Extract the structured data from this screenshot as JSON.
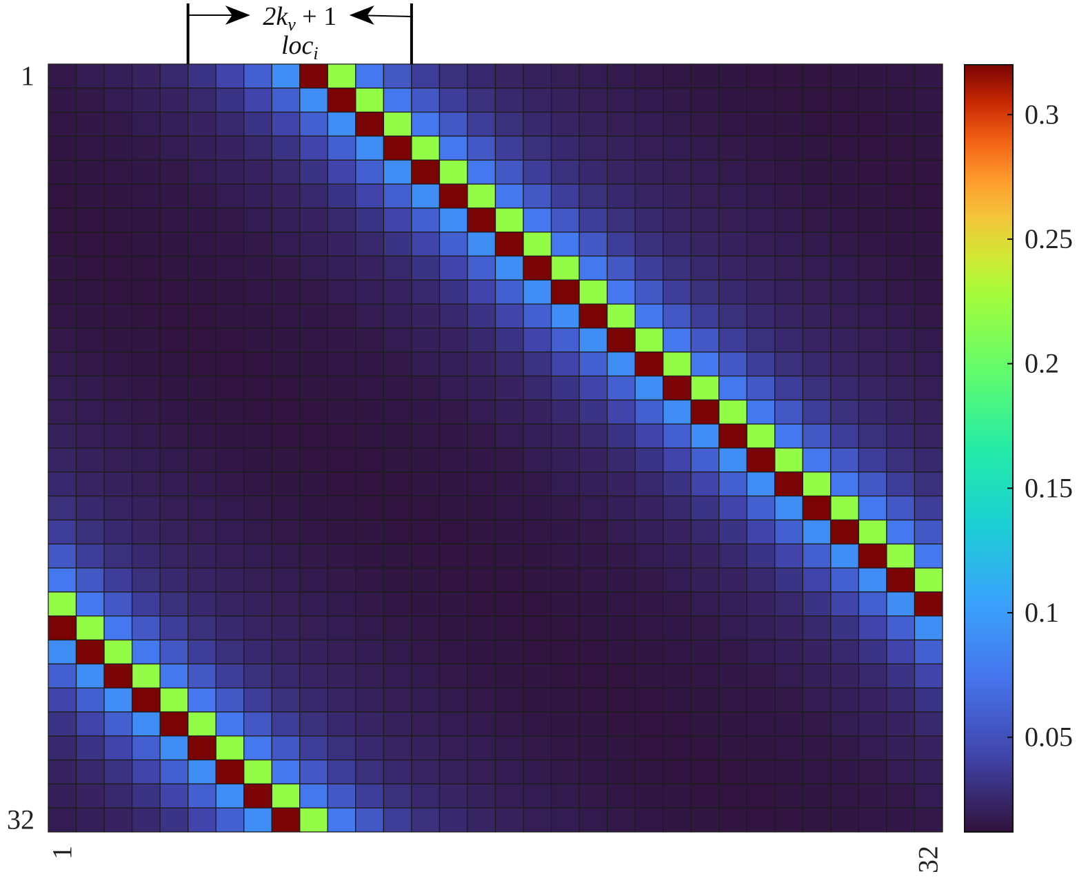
{
  "chart_data": {
    "type": "heatmap",
    "title": "",
    "xlabel": "",
    "ylabel": "",
    "size": 32,
    "x_tick_labels": [
      "1",
      "32"
    ],
    "y_tick_labels": [
      "1",
      "32"
    ],
    "colorbar": {
      "range": [
        0.012,
        0.32
      ],
      "ticks": [
        0.05,
        0.1,
        0.15,
        0.2,
        0.25,
        0.3
      ],
      "tick_labels": [
        "0.05",
        "0.1",
        "0.15",
        "0.2",
        "0.25",
        "0.3"
      ],
      "colormap": "turbo"
    },
    "grid": true,
    "matrix_structure": "circulant, row 1 peak at column 10",
    "row1_values": [
      0.016,
      0.018,
      0.02,
      0.022,
      0.026,
      0.032,
      0.043,
      0.06,
      0.09,
      0.32,
      0.22,
      0.075,
      0.055,
      0.038,
      0.03,
      0.026,
      0.023,
      0.021,
      0.019,
      0.018,
      0.017,
      0.016,
      0.015,
      0.0145,
      0.014,
      0.0135,
      0.013,
      0.0135,
      0.014,
      0.0145,
      0.015,
      0.0155
    ],
    "annotation": {
      "text_top": "2k",
      "text_top_subscript": "v",
      "text_top_suffix": " + 1",
      "text_bottom": "loc",
      "text_bottom_subscript": "i",
      "band_start_col": 6,
      "band_end_col": 14
    }
  }
}
